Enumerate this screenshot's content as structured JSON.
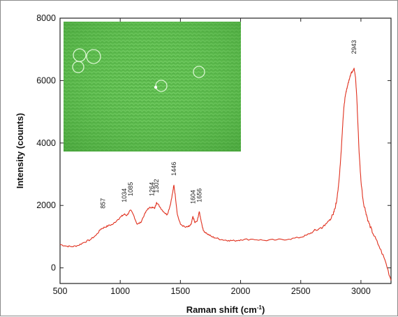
{
  "chart_data": {
    "type": "line",
    "xlabel_main": "Raman shift (cm",
    "xlabel_sup": "-1",
    "xlabel_close": ")",
    "ylabel": "Intensity (counts)",
    "xlim": [
      500,
      3250
    ],
    "ylim": [
      -500,
      8000
    ],
    "xticks": [
      500,
      1000,
      1500,
      2000,
      2500,
      3000
    ],
    "yticks": [
      0,
      2000,
      4000,
      6000,
      8000
    ],
    "grid": false,
    "inset": "microscope image of cells",
    "line_color": "#e0301e",
    "peak_labels": [
      {
        "text": "857",
        "x": 857,
        "y": 1900
      },
      {
        "text": "1034",
        "x": 1034,
        "y": 2100
      },
      {
        "text": "1085",
        "x": 1085,
        "y": 2300
      },
      {
        "text": "1264",
        "x": 1264,
        "y": 2300
      },
      {
        "text": "1302",
        "x": 1302,
        "y": 2400
      },
      {
        "text": "1446",
        "x": 1446,
        "y": 2950
      },
      {
        "text": "1604",
        "x": 1604,
        "y": 2050
      },
      {
        "text": "1656",
        "x": 1656,
        "y": 2100
      },
      {
        "text": "2943",
        "x": 2943,
        "y": 6850
      }
    ],
    "series": [
      {
        "x": [
          500,
          550,
          600,
          650,
          700,
          750,
          800,
          840,
          870,
          900,
          940,
          980,
          1010,
          1034,
          1055,
          1085,
          1110,
          1140,
          1170,
          1200,
          1230,
          1264,
          1285,
          1302,
          1330,
          1360,
          1390,
          1415,
          1435,
          1446,
          1458,
          1475,
          1500,
          1540,
          1570,
          1590,
          1604,
          1620,
          1640,
          1656,
          1670,
          1690,
          1720,
          1760,
          1800,
          1850,
          1900,
          1950,
          2000,
          2100,
          2200,
          2300,
          2400,
          2500,
          2550,
          2600,
          2650,
          2700,
          2740,
          2770,
          2790,
          2800,
          2810,
          2820,
          2830,
          2840,
          2850,
          2860,
          2870,
          2880,
          2890,
          2900,
          2910,
          2920,
          2930,
          2943,
          2955,
          2965,
          2975,
          2985,
          3000,
          3020,
          3040,
          3060,
          3080,
          3100,
          3150,
          3200,
          3250
        ],
        "y": [
          750,
          700,
          680,
          720,
          820,
          900,
          1050,
          1250,
          1300,
          1350,
          1400,
          1550,
          1650,
          1720,
          1680,
          1850,
          1700,
          1400,
          1450,
          1700,
          1900,
          1950,
          1900,
          2100,
          1950,
          1800,
          1700,
          2000,
          2400,
          2650,
          2300,
          1700,
          1400,
          1300,
          1320,
          1400,
          1650,
          1450,
          1500,
          1800,
          1550,
          1200,
          1100,
          1000,
          950,
          900,
          880,
          870,
          900,
          920,
          880,
          900,
          920,
          980,
          1050,
          1150,
          1250,
          1350,
          1550,
          1700,
          2000,
          2200,
          2500,
          2900,
          3400,
          4000,
          4700,
          5200,
          5500,
          5700,
          5850,
          6000,
          6150,
          6250,
          6300,
          6400,
          6100,
          5500,
          4600,
          3700,
          2800,
          2100,
          1800,
          1500,
          1300,
          1100,
          700,
          250,
          -400
        ]
      }
    ]
  }
}
